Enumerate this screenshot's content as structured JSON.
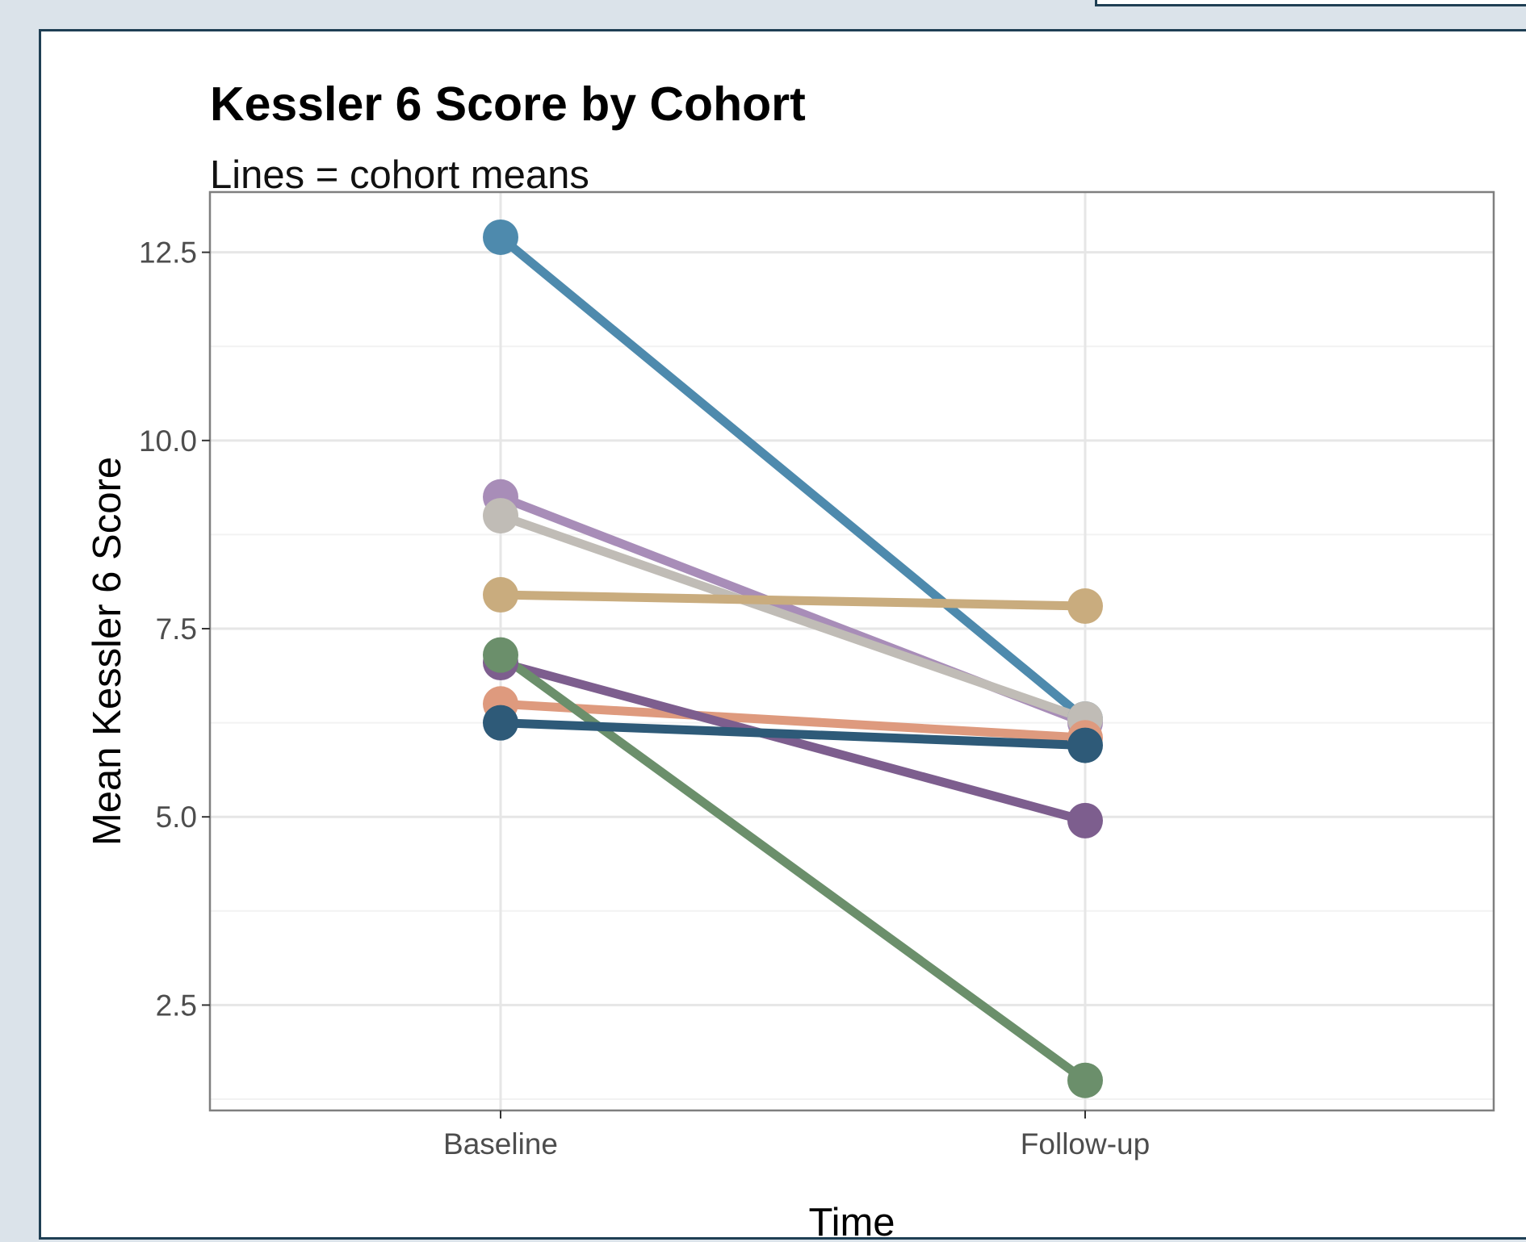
{
  "chart_data": {
    "type": "line",
    "title": "Kessler 6 Score by Cohort",
    "subtitle": "Lines = cohort means",
    "xlabel": "Time",
    "ylabel": "Mean Kessler 6 Score",
    "categories": [
      "Baseline",
      "Follow-up"
    ],
    "yticks": [
      "2.5",
      "5.0",
      "7.5",
      "10.0",
      "12.5"
    ],
    "ylim": [
      1.1,
      13.3
    ],
    "grid": true,
    "legend": "none",
    "series": [
      {
        "color": "#4e8aad",
        "values": [
          12.7,
          6.3
        ]
      },
      {
        "color": "#a88db8",
        "values": [
          9.25,
          6.25
        ]
      },
      {
        "color": "#c0bcb6",
        "values": [
          9.0,
          6.3
        ]
      },
      {
        "color": "#c9ac7e",
        "values": [
          7.95,
          7.8
        ]
      },
      {
        "color": "#de9a7e",
        "values": [
          6.5,
          6.05
        ]
      },
      {
        "color": "#7d5e8e",
        "values": [
          7.05,
          4.95
        ]
      },
      {
        "color": "#6b8f6b",
        "values": [
          7.15,
          1.5
        ]
      },
      {
        "color": "#2e5a78",
        "values": [
          6.25,
          5.95
        ]
      }
    ]
  }
}
